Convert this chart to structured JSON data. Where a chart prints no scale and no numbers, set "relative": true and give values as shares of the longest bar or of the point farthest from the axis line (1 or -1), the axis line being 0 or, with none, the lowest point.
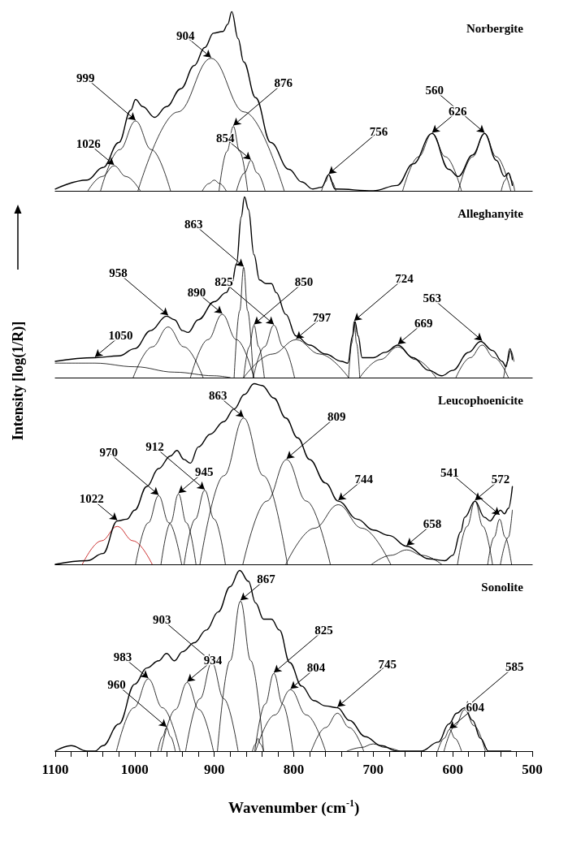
{
  "chart_data": [
    {
      "type": "line",
      "title": "Norbergite",
      "relative": true,
      "marker": "none",
      "tick_labels": false,
      "xlim": [
        1100,
        500
      ],
      "series": [
        {
          "color": "#000000",
          "x": [
            1100,
            1060,
            1040,
            1020,
            1005,
            999,
            990,
            975,
            960,
            942,
            925,
            912,
            901,
            889,
            883,
            878,
            870,
            863,
            848,
            829,
            806,
            790,
            776,
            765,
            756,
            748,
            700,
            670,
            650,
            626,
            605,
            593,
            575,
            560,
            545,
            535,
            530,
            525
          ],
          "values": [
            0.01,
            0.06,
            0.13,
            0.27,
            0.45,
            0.51,
            0.47,
            0.41,
            0.47,
            0.57,
            0.7,
            0.8,
            0.88,
            0.89,
            0.93,
            1,
            0.85,
            0.72,
            0.52,
            0.27,
            0.12,
            0.05,
            0.01,
            0.02,
            0.09,
            0.01,
            0,
            0.03,
            0.15,
            0.32,
            0.12,
            0.08,
            0.2,
            0.32,
            0.17,
            0.08,
            0.1,
            0.03
          ]
        },
        {
          "color": "#000000",
          "x": [
            1059,
            1041,
            1026,
            1011,
            993
          ],
          "values": [
            0,
            0.08,
            0.14,
            0.08,
            0
          ]
        },
        {
          "color": "#000000",
          "x": [
            1043,
            1019,
            999,
            979,
            955
          ],
          "values": [
            0,
            0.23,
            0.39,
            0.23,
            0
          ]
        },
        {
          "color": "#000000",
          "x": [
            996,
            946,
            904,
            862,
            812
          ],
          "values": [
            0,
            0.44,
            0.74,
            0.44,
            0
          ]
        },
        {
          "color": "#000000",
          "x": [
            915,
            907,
            900,
            893,
            885
          ],
          "values": [
            0,
            0.04,
            0.06,
            0.04,
            0
          ]
        },
        {
          "color": "#000000",
          "x": [
            894,
            884,
            876,
            868,
            858
          ],
          "values": [
            0,
            0.22,
            0.36,
            0.22,
            0
          ]
        },
        {
          "color": "#000000",
          "x": [
            872,
            862,
            854,
            846,
            836
          ],
          "values": [
            0,
            0.1,
            0.17,
            0.1,
            0
          ]
        },
        {
          "color": "#000000",
          "x": [
            765,
            760,
            756,
            752,
            747
          ],
          "values": [
            0,
            0.05,
            0.09,
            0.05,
            0
          ]
        },
        {
          "color": "#000000",
          "x": [
            663,
            643,
            626,
            609,
            589
          ],
          "values": [
            0,
            0.19,
            0.32,
            0.19,
            0
          ]
        },
        {
          "color": "#000000",
          "x": [
            593,
            575,
            560,
            545,
            527
          ],
          "values": [
            0,
            0.19,
            0.32,
            0.19,
            0
          ]
        },
        {
          "color": "#000000",
          "x": [
            539,
            534,
            530,
            526,
            522
          ],
          "values": [
            0,
            0.06,
            0.1,
            0.06,
            0
          ]
        }
      ],
      "annotations": [
        {
          "text": "1026",
          "x": 1026,
          "y": 0.14
        },
        {
          "text": "999",
          "x": 999,
          "y": 0.39
        },
        {
          "text": "904",
          "x": 904,
          "y": 0.74
        },
        {
          "text": "876",
          "x": 876,
          "y": 0.36
        },
        {
          "text": "854",
          "x": 854,
          "y": 0.17
        },
        {
          "text": "756",
          "x": 756,
          "y": 0.09
        },
        {
          "text": "626",
          "x": 626,
          "y": 0.32
        },
        {
          "text": "560",
          "x": 560,
          "y": 0.32
        }
      ]
    },
    {
      "type": "line",
      "title": "Alleghanyite",
      "relative": true,
      "marker": "none",
      "tick_labels": false,
      "xlim": [
        1100,
        500
      ],
      "series": [
        {
          "color": "#000000",
          "x": [
            1100,
            1050,
            1020,
            1000,
            980,
            960,
            950,
            940,
            933,
            920,
            900,
            885,
            878,
            872,
            866,
            862,
            857,
            850,
            843,
            835,
            828,
            822,
            810,
            797,
            780,
            760,
            740,
            732,
            726,
            723,
            719,
            714,
            700,
            685,
            669,
            650,
            630,
            614,
            600,
            580,
            565,
            550,
            538,
            533,
            528,
            525
          ],
          "values": [
            0.09,
            0.11,
            0.12,
            0.16,
            0.26,
            0.34,
            0.32,
            0.26,
            0.25,
            0.32,
            0.42,
            0.47,
            0.52,
            0.63,
            0.89,
            1,
            0.93,
            0.68,
            0.54,
            0.52,
            0.52,
            0.47,
            0.35,
            0.23,
            0.18,
            0.13,
            0.09,
            0.08,
            0.23,
            0.31,
            0.23,
            0.11,
            0.11,
            0.14,
            0.18,
            0.11,
            0.04,
            0.01,
            0.04,
            0.14,
            0.2,
            0.15,
            0.09,
            0.06,
            0.16,
            0.1
          ]
        },
        {
          "color": "#000000",
          "x": [
            1100,
            1050,
            1000,
            950,
            900,
            880
          ],
          "values": [
            0.08,
            0.08,
            0.06,
            0.03,
            0.01,
            0
          ]
        },
        {
          "color": "#000000",
          "x": [
            1002,
            978,
            958,
            938,
            914
          ],
          "values": [
            0,
            0.17,
            0.28,
            0.17,
            0
          ]
        },
        {
          "color": "#000000",
          "x": [
            930,
            908,
            890,
            872,
            850
          ],
          "values": [
            0,
            0.21,
            0.35,
            0.21,
            0
          ]
        },
        {
          "color": "#000000",
          "x": [
            875,
            868,
            863,
            858,
            851
          ],
          "values": [
            0,
            0.37,
            0.61,
            0.37,
            0
          ]
        },
        {
          "color": "#000000",
          "x": [
            863,
            856,
            850,
            844,
            837
          ],
          "values": [
            0,
            0.17,
            0.29,
            0.17,
            0
          ]
        },
        {
          "color": "#000000",
          "x": [
            851,
            837,
            825,
            813,
            799
          ],
          "values": [
            0,
            0.17,
            0.29,
            0.17,
            0
          ]
        },
        {
          "color": "#000000",
          "x": [
            863,
            827,
            797,
            767,
            731
          ],
          "values": [
            0,
            0.13,
            0.21,
            0.13,
            0
          ]
        },
        {
          "color": "#000000",
          "x": [
            731,
            727,
            724,
            721,
            717
          ],
          "values": [
            0,
            0.19,
            0.31,
            0.19,
            0
          ]
        },
        {
          "color": "#000000",
          "x": [
            717,
            691,
            669,
            647,
            621
          ],
          "values": [
            0,
            0.1,
            0.17,
            0.1,
            0
          ]
        },
        {
          "color": "#000000",
          "x": [
            596,
            578,
            563,
            548,
            530
          ],
          "values": [
            0,
            0.11,
            0.18,
            0.11,
            0
          ]
        },
        {
          "color": "#000000",
          "x": [
            536,
            531,
            527,
            523
          ],
          "values": [
            0,
            0.09,
            0.15,
            0.09
          ]
        }
      ],
      "annotations": [
        {
          "text": "1050",
          "x": 1050,
          "y": 0.11
        },
        {
          "text": "958",
          "x": 958,
          "y": 0.34
        },
        {
          "text": "890",
          "x": 890,
          "y": 0.35
        },
        {
          "text": "863",
          "x": 863,
          "y": 0.61
        },
        {
          "text": "850",
          "x": 850,
          "y": 0.29
        },
        {
          "text": "825",
          "x": 825,
          "y": 0.29
        },
        {
          "text": "797",
          "x": 797,
          "y": 0.21
        },
        {
          "text": "724",
          "x": 724,
          "y": 0.31
        },
        {
          "text": "669",
          "x": 669,
          "y": 0.18
        },
        {
          "text": "563",
          "x": 563,
          "y": 0.2
        }
      ]
    },
    {
      "type": "line",
      "title": "Leucophoenicite",
      "ylabel": "Intensity [log(1/R)]",
      "relative": true,
      "marker": "none",
      "tick_labels": false,
      "xlim": [
        1100,
        500
      ],
      "series": [
        {
          "color": "#000000",
          "x": [
            1100,
            1060,
            1040,
            1022,
            1010,
            1000,
            985,
            970,
            955,
            947,
            938,
            930,
            920,
            905,
            888,
            875,
            862,
            850,
            840,
            825,
            810,
            795,
            780,
            760,
            744,
            720,
            700,
            680,
            658,
            630,
            610,
            600,
            590,
            585,
            572,
            560,
            553,
            545,
            540,
            535,
            530,
            525
          ],
          "values": [
            0,
            0.02,
            0.06,
            0.24,
            0.25,
            0.3,
            0.43,
            0.53,
            0.6,
            0.63,
            0.58,
            0.56,
            0.65,
            0.72,
            0.79,
            0.86,
            0.94,
            1,
            0.99,
            0.92,
            0.81,
            0.7,
            0.58,
            0.45,
            0.35,
            0.25,
            0.19,
            0.16,
            0.1,
            0.03,
            0.02,
            0.05,
            0.18,
            0.26,
            0.35,
            0.26,
            0.24,
            0.28,
            0.3,
            0.28,
            0.31,
            0.43
          ]
        },
        {
          "color": "#c00000",
          "x": [
            1066,
            1042,
            1022,
            1002,
            978
          ],
          "values": [
            0,
            0.13,
            0.21,
            0.13,
            0
          ]
        },
        {
          "color": "#000000",
          "x": [
            999,
            983,
            970,
            957,
            941
          ],
          "values": [
            0,
            0.23,
            0.38,
            0.23,
            0
          ]
        },
        {
          "color": "#000000",
          "x": [
            967,
            955,
            945,
            935,
            923
          ],
          "values": [
            0,
            0.23,
            0.39,
            0.23,
            0
          ]
        },
        {
          "color": "#000000",
          "x": [
            938,
            924,
            912,
            900,
            886
          ],
          "values": [
            0,
            0.25,
            0.41,
            0.25,
            0
          ]
        },
        {
          "color": "#000000",
          "x": [
            918,
            888,
            863,
            838,
            808
          ],
          "values": [
            0,
            0.49,
            0.81,
            0.49,
            0
          ]
        },
        {
          "color": "#000000",
          "x": [
            864,
            834,
            809,
            784,
            754
          ],
          "values": [
            0,
            0.35,
            0.58,
            0.35,
            0
          ]
        },
        {
          "color": "#000000",
          "x": [
            810,
            774,
            744,
            714,
            678
          ],
          "values": [
            0,
            0.2,
            0.33,
            0.2,
            0
          ]
        },
        {
          "color": "#000000",
          "x": [
            702,
            678,
            658,
            638,
            614
          ],
          "values": [
            0,
            0.05,
            0.08,
            0.05,
            0
          ]
        },
        {
          "color": "#000000",
          "x": [
            594,
            582,
            572,
            562,
            550
          ],
          "values": [
            0,
            0.21,
            0.35,
            0.21,
            0
          ]
        },
        {
          "color": "#000000",
          "x": [
            556,
            548,
            541,
            534,
            526
          ],
          "values": [
            0,
            0.15,
            0.25,
            0.15,
            0
          ]
        },
        {
          "color": "#000000",
          "x": [
            540,
            530,
            525
          ],
          "values": [
            0,
            0.15,
            0.3
          ]
        }
      ],
      "annotations": [
        {
          "text": "1022",
          "x": 1022,
          "y": 0.24
        },
        {
          "text": "970",
          "x": 970,
          "y": 0.38
        },
        {
          "text": "945",
          "x": 945,
          "y": 0.39
        },
        {
          "text": "912",
          "x": 912,
          "y": 0.41
        },
        {
          "text": "863",
          "x": 863,
          "y": 0.81
        },
        {
          "text": "809",
          "x": 809,
          "y": 0.58
        },
        {
          "text": "744",
          "x": 744,
          "y": 0.35
        },
        {
          "text": "658",
          "x": 658,
          "y": 0.1
        },
        {
          "text": "572",
          "x": 572,
          "y": 0.35
        },
        {
          "text": "541",
          "x": 541,
          "y": 0.27
        }
      ]
    },
    {
      "type": "line",
      "title": "Sonolite",
      "xlabel": "Wavenumber (cm$^{-1}$)",
      "relative": true,
      "marker": "none",
      "tick_labels": "x",
      "xlim": [
        1100,
        500
      ],
      "xticks": [
        1100,
        {
          "value": 1080,
          "label": null
        },
        {
          "value": 1060,
          "label": null
        },
        {
          "value": 1040,
          "label": null
        },
        {
          "value": 1020,
          "label": null
        },
        1000,
        {
          "value": 980,
          "label": null
        },
        {
          "value": 960,
          "label": null
        },
        {
          "value": 940,
          "label": null
        },
        {
          "value": 920,
          "label": null
        },
        900,
        {
          "value": 880,
          "label": null
        },
        {
          "value": 860,
          "label": null
        },
        {
          "value": 840,
          "label": null
        },
        {
          "value": 820,
          "label": null
        },
        800,
        {
          "value": 780,
          "label": null
        },
        {
          "value": 760,
          "label": null
        },
        {
          "value": 740,
          "label": null
        },
        {
          "value": 720,
          "label": null
        },
        700,
        {
          "value": 680,
          "label": null
        },
        {
          "value": 660,
          "label": null
        },
        {
          "value": 640,
          "label": null
        },
        {
          "value": 620,
          "label": null
        },
        600,
        {
          "value": 580,
          "label": null
        },
        {
          "value": 560,
          "label": null
        },
        {
          "value": 540,
          "label": null
        },
        {
          "value": 520,
          "label": null
        },
        500
      ],
      "series": [
        {
          "color": "#000000",
          "x": [
            1100,
            1080,
            1060,
            1050,
            1040,
            1020,
            1000,
            985,
            970,
            960,
            950,
            940,
            925,
            910,
            895,
            880,
            868,
            857,
            848,
            838,
            828,
            818,
            805,
            790,
            775,
            760,
            745,
            730,
            710,
            690,
            670,
            640,
            618,
            605,
            595,
            585,
            575,
            565,
            555,
            540,
            527
          ],
          "values": [
            0,
            0.03,
            0,
            0,
            0.03,
            0.15,
            0.37,
            0.46,
            0.5,
            0.54,
            0.5,
            0.55,
            0.6,
            0.67,
            0.77,
            0.91,
            1,
            0.94,
            0.82,
            0.73,
            0.73,
            0.67,
            0.49,
            0.36,
            0.28,
            0.25,
            0.24,
            0.17,
            0.08,
            0.03,
            0,
            0,
            0.05,
            0.15,
            0.21,
            0.24,
            0.17,
            0.07,
            0,
            0,
            0
          ]
        },
        {
          "color": "#000000",
          "x": [
            1023,
            1001,
            983,
            965,
            943
          ],
          "values": [
            0,
            0.24,
            0.4,
            0.24,
            0
          ]
        },
        {
          "color": "#000000",
          "x": [
            971,
            965,
            960,
            955,
            949
          ],
          "values": [
            0,
            0.08,
            0.13,
            0.08,
            0
          ]
        },
        {
          "color": "#000000",
          "x": [
            967,
            949,
            934,
            919,
            901
          ],
          "values": [
            0,
            0.23,
            0.38,
            0.23,
            0
          ]
        },
        {
          "color": "#000000",
          "x": [
            936,
            918,
            903,
            888,
            870
          ],
          "values": [
            0,
            0.29,
            0.49,
            0.29,
            0
          ]
        },
        {
          "color": "#000000",
          "x": [
            896,
            880,
            867,
            854,
            838
          ],
          "values": [
            0,
            0.5,
            0.83,
            0.5,
            0
          ]
        },
        {
          "color": "#000000",
          "x": [
            852,
            848,
            845,
            842,
            838
          ],
          "values": [
            0,
            0.04,
            0.07,
            0.04,
            0
          ]
        },
        {
          "color": "#000000",
          "x": [
            849,
            836,
            825,
            814,
            801
          ],
          "values": [
            0,
            0.26,
            0.43,
            0.26,
            0
          ]
        },
        {
          "color": "#000000",
          "x": [
            848,
            824,
            804,
            784,
            760
          ],
          "values": [
            0,
            0.2,
            0.34,
            0.2,
            0
          ]
        },
        {
          "color": "#000000",
          "x": [
            778,
            760,
            745,
            730,
            712
          ],
          "values": [
            0,
            0.13,
            0.21,
            0.13,
            0
          ]
        },
        {
          "color": "#000000",
          "x": [
            733,
            715,
            700,
            685,
            667
          ],
          "values": [
            0,
            0.02,
            0.04,
            0.02,
            0
          ]
        },
        {
          "color": "#000000",
          "x": [
            619,
            611,
            604,
            597,
            589
          ],
          "values": [
            0,
            0.07,
            0.12,
            0.07,
            0
          ]
        },
        {
          "color": "#000000",
          "x": [
            611,
            597,
            585,
            573,
            559
          ],
          "values": [
            0,
            0.14,
            0.23,
            0.14,
            0
          ]
        }
      ],
      "annotations": [
        {
          "text": "983",
          "x": 983,
          "y": 0.4
        },
        {
          "text": "960",
          "x": 960,
          "y": 0.13
        },
        {
          "text": "934",
          "x": 934,
          "y": 0.38
        },
        {
          "text": "903",
          "x": 903,
          "y": 0.49
        },
        {
          "text": "867",
          "x": 867,
          "y": 0.83
        },
        {
          "text": "825",
          "x": 825,
          "y": 0.43
        },
        {
          "text": "804",
          "x": 804,
          "y": 0.34
        },
        {
          "text": "745",
          "x": 745,
          "y": 0.24
        },
        {
          "text": "604",
          "x": 604,
          "y": 0.12
        },
        {
          "text": "585",
          "x": 585,
          "y": 0.23
        }
      ]
    }
  ]
}
